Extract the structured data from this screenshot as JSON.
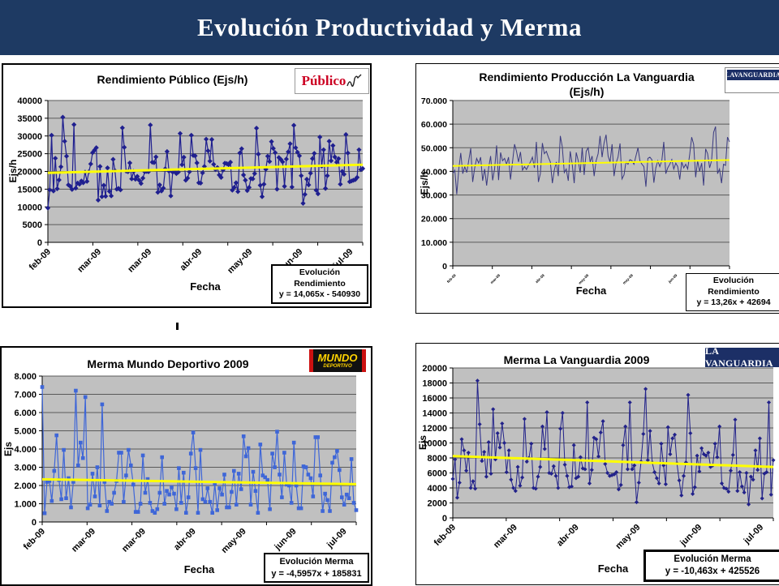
{
  "slide": {
    "title": "Evolución Productividad y Merma"
  },
  "colors": {
    "header_navy": "#1e3a63",
    "plot_bg": "#c0c0c0",
    "grid": "#5a5a5a",
    "axis": "#000000",
    "trend_yellow": "#ffff00",
    "publico_red": "#cc0022",
    "vanguardia_navy": "#1c2f66",
    "mundo_yellow": "#ffd400"
  },
  "logos": {
    "publico_text": "Público",
    "vanguardia_small_text": "LAVANGUARDIA",
    "mundo_line1": "MUNDO",
    "mundo_line2": "DEPORTIVO",
    "vanguardia_large_text": "LA VANGUARDIA"
  },
  "chart_data": [
    {
      "type": "line",
      "title_line1": "Rendimiento Público (Ejs/h)",
      "title_line2": "",
      "xlabel": "Fecha",
      "ylabel": "Ejs/h",
      "ylim": [
        0,
        40000
      ],
      "grid": true,
      "ytick_labels": [
        "0",
        "5000",
        "10000",
        "15000",
        "20000",
        "25000",
        "30000",
        "35000",
        "40000"
      ],
      "x_tick_labels": [
        "feb-09",
        "mar-09",
        "mar-09",
        "abr-09",
        "may-09",
        "jun-09",
        "jul-09"
      ],
      "series_color": "#1f1f8f",
      "marker": "diamond",
      "trend": {
        "label": "Evolución Rendimiento",
        "equation": "y = 14,065x - 540930",
        "start": 19600,
        "end": 21900
      },
      "values": [
        9700,
        14800,
        30200,
        14500,
        23700,
        15100,
        17600,
        21300,
        35300,
        28500,
        24300,
        16200,
        15800,
        14900,
        33200,
        15300,
        16700,
        16400,
        17300,
        16800,
        19800,
        17200,
        19900,
        22100,
        25300,
        26000,
        26700,
        11900,
        21400,
        12900,
        16100,
        13000,
        21000,
        14400,
        13100,
        23400,
        20200,
        15000,
        15200,
        14800,
        32300,
        26800,
        20100,
        19900,
        22400,
        17900,
        20000,
        17800,
        18600,
        17500,
        16600,
        18100,
        19900,
        20000,
        19900,
        33100,
        22600,
        22500,
        24100,
        14100,
        16200,
        14500,
        15300,
        20700,
        25600,
        20100,
        13100,
        19800,
        20100,
        19400,
        19800,
        30700,
        21900,
        24000,
        17500,
        18100,
        19900,
        30200,
        24500,
        24400,
        22400,
        16800,
        16700,
        19600,
        21400,
        29100,
        25800,
        22900,
        29000,
        22000,
        20500,
        21100,
        19000,
        18300,
        20400,
        22300,
        22200,
        21900,
        22600,
        14700,
        15500,
        16800,
        14300,
        25200,
        26400,
        19000,
        17500,
        14600,
        15500,
        18000,
        17900,
        19400,
        32200,
        24900,
        16100,
        12900,
        16400,
        20600,
        24300,
        22800,
        28400,
        26500,
        25300,
        15000,
        23900,
        23400,
        22700,
        15800,
        23500,
        25500,
        27800,
        15600,
        33000,
        26700,
        25400,
        24400,
        18800,
        11000,
        13500,
        17800,
        16200,
        19500,
        23600,
        25100,
        14700,
        13700,
        29700,
        21500,
        26100,
        15200,
        18800,
        28500,
        23000,
        27300,
        24100,
        22600,
        23600,
        16400,
        20000,
        19200,
        30400,
        25200,
        17100,
        17300,
        17500,
        17700,
        18300,
        26100,
        20500,
        20800
      ]
    },
    {
      "type": "line",
      "title_line1": "Rendimiento Producción La Vanguardia",
      "title_line2": "(Ejs/h)",
      "xlabel": "Fecha",
      "ylabel": "Ejs/h",
      "ylim": [
        0,
        70000
      ],
      "grid": true,
      "ytick_labels": [
        "0",
        "10.000",
        "20.000",
        "30.000",
        "40.000",
        "50.000",
        "60.000",
        "70.000"
      ],
      "x_tick_labels": [
        "feb-09",
        "mar-09",
        "abr-09",
        "may-09",
        "may-09",
        "jun-09",
        "jul-09"
      ],
      "series_color": "#3a3a80",
      "marker": "none",
      "trend": {
        "label": "Evolución Rendimiento",
        "equation": "y = 13,26x + 42694",
        "start": 42300,
        "end": 44800
      },
      "values": [
        39000,
        40500,
        30300,
        41000,
        47800,
        39000,
        42000,
        39500,
        44500,
        49800,
        35500,
        41500,
        45500,
        43500,
        46000,
        36000,
        41000,
        34000,
        41500,
        46500,
        36200,
        41000,
        51000,
        36300,
        48000,
        44500,
        45500,
        43000,
        46000,
        36500,
        44000,
        51500,
        48500,
        44000,
        48200,
        40500,
        42000,
        40800,
        42500,
        44000,
        46000,
        41500,
        52500,
        35500,
        39000,
        52000,
        47500,
        48500,
        46000,
        44000,
        35000,
        40500,
        44000,
        38000,
        55000,
        50500,
        39500,
        41000,
        36000,
        48500,
        43000,
        35000,
        48000,
        44500,
        39500,
        50000,
        38500,
        48500,
        50000,
        44000,
        46500,
        38000,
        44500,
        47500,
        55000,
        46000,
        52000,
        55500,
        46500,
        44000,
        51500,
        38000,
        43500,
        46000,
        51800,
        36800,
        38500,
        44000,
        43000,
        45000,
        44500,
        43000,
        46500,
        50000,
        44500,
        43000,
        42000,
        33500,
        45500,
        46000,
        45000,
        35200,
        41500,
        44500,
        42000,
        44500,
        52500,
        39000,
        41500,
        43000,
        45000,
        41000,
        43500,
        42000,
        36500,
        44000,
        41500,
        43000,
        41000,
        47000,
        54500,
        51500,
        37500,
        44500,
        40000,
        43500,
        34000,
        49500,
        47500,
        41500,
        44500,
        56500,
        59000,
        39000,
        41000,
        35000,
        43000,
        42500,
        54500,
        52500
      ]
    },
    {
      "type": "line",
      "title_line1": "Merma Mundo Deportivo 2009",
      "title_line2": "",
      "xlabel": "Fecha",
      "ylabel": "Ejs",
      "ylim": [
        0,
        8000
      ],
      "grid": true,
      "ytick_labels": [
        "0",
        "1.000",
        "2.000",
        "3.000",
        "4.000",
        "5.000",
        "6.000",
        "7.000",
        "8.000"
      ],
      "x_tick_labels": [
        "feb-09",
        "mar-09",
        "mar-09",
        "abr-09",
        "may-09",
        "jun-09",
        "jul-09"
      ],
      "series_color": "#3e66d8",
      "marker": "square",
      "trend": {
        "label": "Evolución Merma",
        "equation": "y = -4,5957x + 185831",
        "start": 2340,
        "end": 2070
      },
      "values": [
        7400,
        480,
        2200,
        2250,
        1150,
        2800,
        4750,
        2300,
        1250,
        3950,
        1300,
        2400,
        800,
        2200,
        7200,
        3100,
        4350,
        3500,
        6850,
        750,
        950,
        2650,
        1400,
        3000,
        900,
        6450,
        2200,
        600,
        1100,
        1000,
        1600,
        2250,
        3800,
        3800,
        1100,
        2550,
        3950,
        3100,
        2050,
        550,
        550,
        1000,
        3650,
        1600,
        2350,
        1050,
        600,
        500,
        700,
        1600,
        3550,
        1000,
        1700,
        1500,
        1900,
        1550,
        700,
        2950,
        1050,
        2700,
        500,
        1350,
        3750,
        4900,
        2950,
        500,
        3950,
        1250,
        1100,
        1850,
        1100,
        500,
        2100,
        650,
        1850,
        1500,
        2600,
        800,
        800,
        1650,
        2800,
        950,
        2650,
        1800,
        4700,
        3600,
        4050,
        950,
        2750,
        1700,
        500,
        4250,
        2550,
        2450,
        2300,
        700,
        3750,
        3000,
        4950,
        2600,
        1350,
        3800,
        2050,
        2000,
        1050,
        4350,
        2000,
        750,
        750,
        3050,
        3000,
        2600,
        2400,
        1400,
        4650,
        4650,
        2550,
        600,
        1550,
        1200,
        600,
        3250,
        3550,
        3900,
        2850,
        1350,
        950,
        1500,
        1300,
        3450,
        1050,
        650
      ]
    },
    {
      "type": "line",
      "title_line1": "Merma La Vanguardia 2009",
      "title_line2": "",
      "xlabel": "Fecha",
      "ylabel": "Ejs",
      "ylim": [
        0,
        20000
      ],
      "grid": true,
      "ytick_labels": [
        "0",
        "2000",
        "4000",
        "6000",
        "8000",
        "10000",
        "12000",
        "14000",
        "16000",
        "18000",
        "20000"
      ],
      "x_tick_labels": [
        "feb-09",
        "mar-09",
        "abr-09",
        "may-09",
        "jun-09",
        "jul-09"
      ],
      "series_color": "#22228a",
      "marker": "diamond",
      "trend": {
        "label": "Evolución Merma",
        "equation": "y = -10,463x + 425526",
        "start": 8250,
        "end": 6800
      },
      "values": [
        5200,
        7800,
        2700,
        4700,
        10500,
        9000,
        6300,
        8700,
        4000,
        4900,
        3900,
        18300,
        12500,
        7600,
        8800,
        5500,
        10100,
        5900,
        14500,
        7800,
        11300,
        9400,
        12600,
        10000,
        6100,
        9000,
        5100,
        4000,
        3600,
        6800,
        4300,
        5400,
        13200,
        7500,
        8000,
        9900,
        4000,
        3900,
        5500,
        6800,
        12200,
        9200,
        14100,
        6000,
        5900,
        6900,
        5600,
        4000,
        11900,
        14000,
        7100,
        5600,
        4100,
        4200,
        9700,
        5300,
        5500,
        8100,
        6600,
        6500,
        15400,
        4600,
        6400,
        10700,
        10500,
        8200,
        11400,
        12900,
        7200,
        6000,
        5600,
        5700,
        5800,
        6100,
        3800,
        4400,
        9700,
        12200,
        6500,
        15400,
        6500,
        7000,
        2100,
        4700,
        7500,
        11200,
        17200,
        7700,
        11600,
        7400,
        6100,
        5300,
        4600,
        9900,
        7000,
        4500,
        12100,
        8500,
        10600,
        11100,
        7300,
        5000,
        3000,
        5600,
        7400,
        16400,
        11300,
        3200,
        4100,
        8300,
        6200,
        9300,
        8500,
        8300,
        8700,
        6800,
        7000,
        9900,
        8100,
        12200,
        4600,
        4000,
        3900,
        3500,
        6300,
        8400,
        13100,
        3600,
        6100,
        4200,
        3400,
        6000,
        1800,
        5500,
        5100,
        9000,
        6400,
        10600,
        2600,
        5900,
        6100,
        15400,
        3100,
        7700
      ]
    }
  ]
}
